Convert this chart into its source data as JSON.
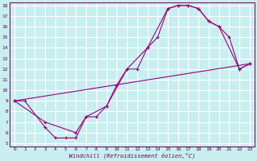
{
  "background_color": "#c8eef0",
  "grid_color": "#ffffff",
  "line_color": "#990077",
  "xlabel": "Windchill (Refroidissement éolien,°C)",
  "xlim": [
    -0.5,
    23.5
  ],
  "ylim": [
    4.7,
    18.3
  ],
  "yticks": [
    5,
    6,
    7,
    8,
    9,
    10,
    11,
    12,
    13,
    14,
    15,
    16,
    17,
    18
  ],
  "xticks": [
    0,
    1,
    2,
    3,
    4,
    5,
    6,
    7,
    8,
    9,
    10,
    11,
    12,
    13,
    14,
    15,
    16,
    17,
    18,
    19,
    20,
    21,
    22,
    23
  ],
  "line1_x": [
    0,
    1,
    3,
    4,
    5,
    6,
    7,
    8,
    9,
    10,
    11,
    12,
    13,
    14,
    15,
    16,
    17,
    18,
    19,
    20,
    21,
    22,
    23
  ],
  "line1_y": [
    9,
    9,
    6.5,
    5.5,
    5.5,
    5.5,
    7.5,
    7.5,
    8.5,
    10.5,
    12,
    12,
    14,
    15,
    17.7,
    18,
    18,
    17.7,
    16.5,
    16,
    15,
    12,
    12.5
  ],
  "line2_x": [
    0,
    3,
    6,
    7,
    9,
    11,
    13,
    15,
    16,
    17,
    18,
    19,
    20,
    22,
    23
  ],
  "line2_y": [
    9,
    7,
    6,
    7.5,
    8.5,
    12,
    14,
    17.7,
    18,
    18,
    17.7,
    16.5,
    16,
    12,
    12.5
  ],
  "line3_x": [
    0,
    23
  ],
  "line3_y": [
    9,
    12.5
  ]
}
